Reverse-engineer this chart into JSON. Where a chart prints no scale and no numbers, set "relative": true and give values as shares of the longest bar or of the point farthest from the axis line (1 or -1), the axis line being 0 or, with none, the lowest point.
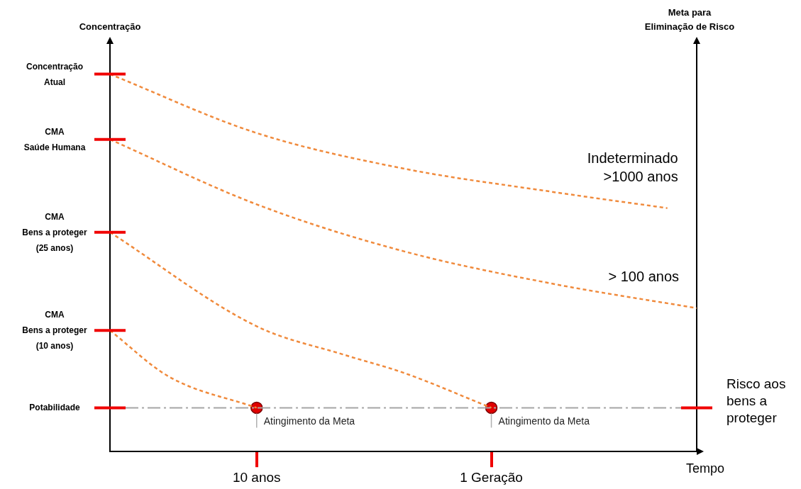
{
  "chart_data": {
    "type": "line",
    "ylabel": "Concentração",
    "y2label": "Meta para\nEliminação de Risco",
    "xlabel": "Tempo",
    "categories": [
      null,
      null,
      null,
      null,
      null,
      "10 anos",
      null,
      null,
      null,
      null,
      null,
      null,
      null,
      "1 Geração",
      null,
      null,
      null,
      null,
      null,
      null,
      null
    ],
    "series": [
      {
        "name": "Indeterminado\n>1000 anos",
        "color": "#f08a3c",
        "values": [
          1,
          null,
          null,
          null,
          null,
          0.844,
          null,
          null,
          null,
          null,
          0.75,
          null,
          null,
          null,
          null,
          0.689,
          null,
          null,
          null,
          0.645,
          null
        ]
      },
      {
        "name": "> 100 anos",
        "color": "#f08a3c",
        "values": [
          0.827,
          null,
          null,
          null,
          null,
          0.655,
          null,
          null,
          null,
          null,
          0.531,
          null,
          null,
          null,
          null,
          0.446,
          null,
          null,
          null,
          null,
          0.38
        ]
      },
      {
        "color": "#f08a3c",
        "values": [
          0.581,
          null,
          null,
          null,
          null,
          0.332,
          null,
          null,
          0.256,
          null,
          0.209,
          null,
          null,
          0.116,
          null,
          null,
          null,
          null,
          null,
          null,
          null
        ]
      },
      {
        "color": "#f08a3c",
        "values": [
          0.321,
          null,
          0.199,
          null,
          null,
          0.116,
          null,
          null,
          null,
          null,
          null,
          null,
          null,
          null,
          null,
          null,
          null,
          null,
          null,
          null,
          null
        ]
      },
      {
        "type": "scatter",
        "marker": "circle",
        "color": "#e00000",
        "x": [
          "10 anos",
          "1 Geração"
        ],
        "values": [
          0.116,
          0.116
        ]
      }
    ],
    "relative": true,
    "line_style": "dashed",
    "marker": "none",
    "grid": false,
    "legend": false,
    "ref_lines": [
      {
        "axis": "y",
        "value": 0.116,
        "label": "Risco aos\nbens a\nproteger",
        "color": "#a6a6a6",
        "line_style": "dashed"
      }
    ],
    "annotations": [
      "Concentração\nAtual",
      "CMA\nSaúde Humana",
      "CMA\nBens a proteger\n(25 anos)",
      "CMA\nBens a proteger\n(10 anos)",
      "Potabilidade",
      {
        "text": "Atingimento da Meta",
        "x": "10 anos",
        "y": 0.116
      },
      {
        "text": "Atingimento da Meta",
        "x": "1 Geração",
        "y": 0.116
      }
    ]
  }
}
